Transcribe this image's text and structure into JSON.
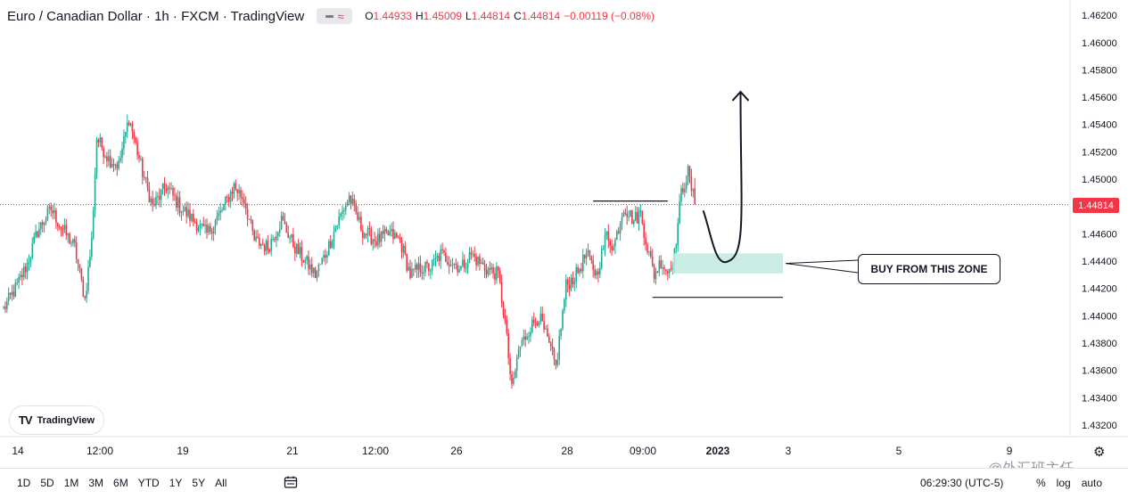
{
  "legend": {
    "title": "Euro / Canadian Dollar · 1h · FXCM · TradingView",
    "open_label": "O",
    "open": "1.44933",
    "high_label": "H",
    "high": "1.45009",
    "low_label": "L",
    "low": "1.44814",
    "close_label": "C",
    "close": "1.44814",
    "change": "−0.00119 (−0.08%)"
  },
  "logo": {
    "text": "TradingView"
  },
  "annotation": {
    "text": "BUY FROM THIS ZONE"
  },
  "last_price": "1.44814",
  "time_ranges": [
    "1D",
    "5D",
    "1M",
    "3M",
    "6M",
    "YTD",
    "1Y",
    "5Y",
    "All"
  ],
  "clock": "06:29:30 (UTC-5)",
  "scale_options": {
    "percent": "%",
    "log": "log",
    "auto": "auto"
  },
  "watermark": "@外汇班主任",
  "icons": {
    "settings": "gear-icon",
    "calendar": "calendar-range-icon"
  },
  "colors": {
    "up": "#22ab94",
    "down": "#f23645",
    "zone": "#bfe9df",
    "text": "#131722"
  },
  "chart_data": {
    "type": "candlestick",
    "ylim": [
      1.431,
      1.4628
    ],
    "y_ticks": [
      "1.46200",
      "1.46000",
      "1.45800",
      "1.45600",
      "1.45400",
      "1.45200",
      "1.45000",
      "1.44814",
      "1.44600",
      "1.44400",
      "1.44200",
      "1.44000",
      "1.43800",
      "1.43600",
      "1.43400",
      "1.43200"
    ],
    "x_ticks": [
      "14",
      "12:00",
      "19",
      "21",
      "12:00",
      "26",
      "28",
      "09:00",
      "2023",
      "3",
      "5",
      "9"
    ],
    "path_points": [
      {
        "i": 0,
        "p": 1.4405
      },
      {
        "i": 8,
        "p": 1.4422
      },
      {
        "i": 14,
        "p": 1.4438
      },
      {
        "i": 20,
        "p": 1.4462
      },
      {
        "i": 28,
        "p": 1.4478
      },
      {
        "i": 34,
        "p": 1.4465
      },
      {
        "i": 42,
        "p": 1.445
      },
      {
        "i": 48,
        "p": 1.4412
      },
      {
        "i": 52,
        "p": 1.4455
      },
      {
        "i": 55,
        "p": 1.453
      },
      {
        "i": 62,
        "p": 1.4515
      },
      {
        "i": 68,
        "p": 1.451
      },
      {
        "i": 74,
        "p": 1.4545
      },
      {
        "i": 82,
        "p": 1.4505
      },
      {
        "i": 88,
        "p": 1.448
      },
      {
        "i": 96,
        "p": 1.4495
      },
      {
        "i": 104,
        "p": 1.448
      },
      {
        "i": 112,
        "p": 1.447
      },
      {
        "i": 120,
        "p": 1.446
      },
      {
        "i": 128,
        "p": 1.4475
      },
      {
        "i": 136,
        "p": 1.4495
      },
      {
        "i": 142,
        "p": 1.4485
      },
      {
        "i": 148,
        "p": 1.4455
      },
      {
        "i": 156,
        "p": 1.445
      },
      {
        "i": 164,
        "p": 1.447
      },
      {
        "i": 172,
        "p": 1.445
      },
      {
        "i": 178,
        "p": 1.444
      },
      {
        "i": 184,
        "p": 1.443
      },
      {
        "i": 190,
        "p": 1.4445
      },
      {
        "i": 196,
        "p": 1.4465
      },
      {
        "i": 204,
        "p": 1.4487
      },
      {
        "i": 212,
        "p": 1.4462
      },
      {
        "i": 220,
        "p": 1.4455
      },
      {
        "i": 228,
        "p": 1.446
      },
      {
        "i": 234,
        "p": 1.4455
      },
      {
        "i": 240,
        "p": 1.443
      },
      {
        "i": 246,
        "p": 1.4435
      },
      {
        "i": 252,
        "p": 1.4435
      },
      {
        "i": 258,
        "p": 1.4445
      },
      {
        "i": 264,
        "p": 1.444
      },
      {
        "i": 270,
        "p": 1.4435
      },
      {
        "i": 276,
        "p": 1.4445
      },
      {
        "i": 284,
        "p": 1.4435
      },
      {
        "i": 292,
        "p": 1.443
      },
      {
        "i": 296,
        "p": 1.4395
      },
      {
        "i": 300,
        "p": 1.4345
      },
      {
        "i": 304,
        "p": 1.4375
      },
      {
        "i": 310,
        "p": 1.439
      },
      {
        "i": 316,
        "p": 1.44
      },
      {
        "i": 322,
        "p": 1.4378
      },
      {
        "i": 326,
        "p": 1.4362
      },
      {
        "i": 332,
        "p": 1.4422
      },
      {
        "i": 338,
        "p": 1.443
      },
      {
        "i": 344,
        "p": 1.4445
      },
      {
        "i": 350,
        "p": 1.443
      },
      {
        "i": 356,
        "p": 1.446
      },
      {
        "i": 360,
        "p": 1.445
      },
      {
        "i": 366,
        "p": 1.448
      },
      {
        "i": 372,
        "p": 1.447
      },
      {
        "i": 376,
        "p": 1.4475
      },
      {
        "i": 380,
        "p": 1.445
      },
      {
        "i": 384,
        "p": 1.443
      },
      {
        "i": 388,
        "p": 1.444
      },
      {
        "i": 392,
        "p": 1.4432
      },
      {
        "i": 396,
        "p": 1.4445
      },
      {
        "i": 400,
        "p": 1.449
      },
      {
        "i": 404,
        "p": 1.4505
      },
      {
        "i": 408,
        "p": 1.4481
      }
    ],
    "candle_count": 409,
    "ohlc_last": {
      "open": 1.44933,
      "high": 1.45009,
      "low": 1.44814,
      "close": 1.44814
    },
    "drawings": {
      "resistance_line": {
        "price": 1.4484,
        "from_candle": 348,
        "to_candle": 392
      },
      "support_line": {
        "price": 1.44135,
        "from_candle": 383,
        "to_candle": 460
      },
      "buy_zone": {
        "top": 1.44457,
        "bottom": 1.4431,
        "from_candle": 395,
        "to_candle": 460
      },
      "projection_arrow": {
        "start": {
          "candle": 413,
          "price": 1.4477
        },
        "bottom": {
          "candle": 428,
          "price": 1.444
        },
        "end": {
          "candle": 435,
          "price": 1.4564
        }
      }
    }
  }
}
